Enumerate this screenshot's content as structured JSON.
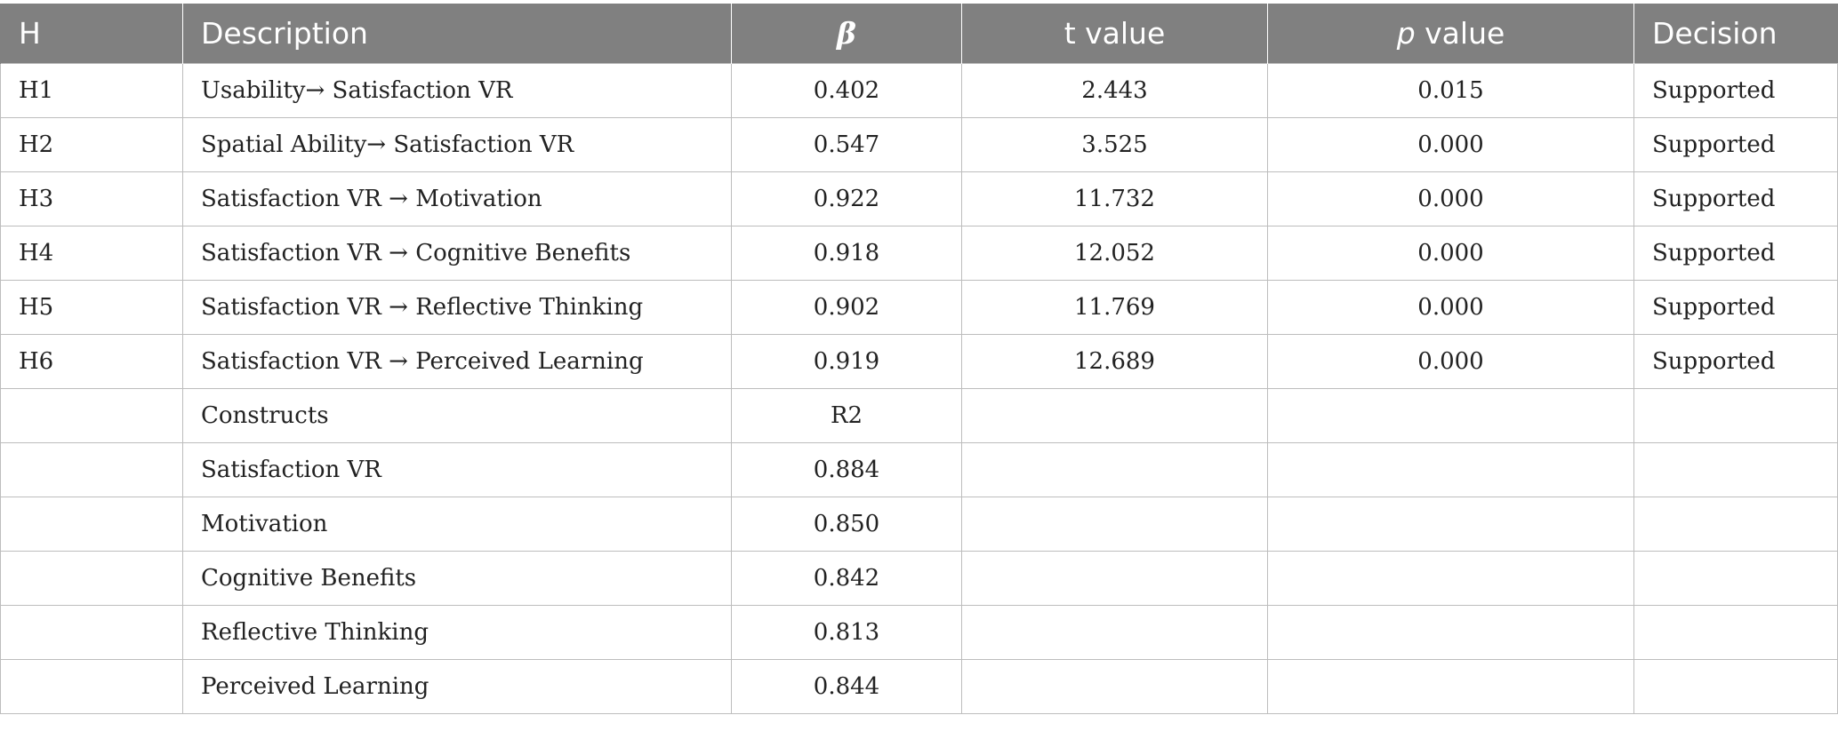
{
  "headers": [
    "H",
    "Description",
    "β",
    "t value",
    "p",
    " value",
    "Decision"
  ],
  "hypotheses": [
    [
      "H1",
      "Usability→ Satisfaction VR",
      "0.402",
      "2.443",
      "0.015",
      "Supported"
    ],
    [
      "H2",
      "Spatial Ability→ Satisfaction VR",
      "0.547",
      "3.525",
      "0.000",
      "Supported"
    ],
    [
      "H3",
      "Satisfaction VR → Motivation",
      "0.922",
      "11.732",
      "0.000",
      "Supported"
    ],
    [
      "H4",
      "Satisfaction VR → Cognitive Benefits",
      "0.918",
      "12.052",
      "0.000",
      "Supported"
    ],
    [
      "H5",
      "Satisfaction VR → Reflective Thinking",
      "0.902",
      "11.769",
      "0.000",
      "Supported"
    ],
    [
      "H6",
      "Satisfaction VR → Perceived Learning",
      "0.919",
      "12.689",
      "0.000",
      "Supported"
    ]
  ],
  "constructs_header": [
    "Constructs",
    "R2"
  ],
  "constructs": [
    [
      "Satisfaction VR",
      "0.884"
    ],
    [
      "Motivation",
      "0.850"
    ],
    [
      "Cognitive Benefits",
      "0.842"
    ],
    [
      "Reflective Thinking",
      "0.813"
    ],
    [
      "Perceived Learning",
      "0.844"
    ]
  ]
}
